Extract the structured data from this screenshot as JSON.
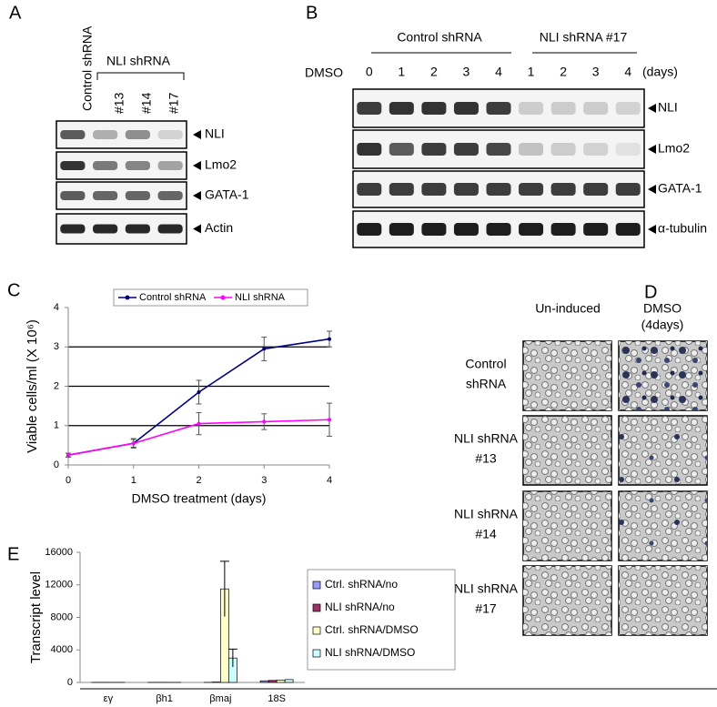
{
  "panel_labels": [
    "A",
    "B",
    "C",
    "D",
    "E"
  ],
  "panel_a": {
    "control_label": "Control shRNA",
    "group_label": "NLI shRNA",
    "lanes": [
      "#13",
      "#14",
      "#17"
    ],
    "bands": [
      "NLI",
      "Lmo2",
      "GATA-1",
      "Actin"
    ]
  },
  "panel_b": {
    "group_labels": [
      "Control shRNA",
      "NLI shRNA #17"
    ],
    "treatment": "DMSO",
    "lanes": [
      0,
      1,
      2,
      3,
      4,
      1,
      2,
      3,
      4
    ],
    "unit": "(days)",
    "bands": [
      "NLI",
      "Lmo2",
      "GATA-1",
      "α-tubulin"
    ]
  },
  "panel_d": {
    "columns": [
      [
        "Un-induced"
      ],
      [
        "DMSO",
        "(4days)"
      ]
    ],
    "rows": [
      [
        "Control",
        "shRNA"
      ],
      [
        "NLI shRNA",
        "#13"
      ],
      [
        "NLI shRNA",
        "#14"
      ],
      [
        "NLI shRNA",
        "#17"
      ]
    ]
  },
  "chart_data": [
    {
      "type": "line",
      "x": [
        0,
        1,
        2,
        3,
        4
      ],
      "xlim": [
        0,
        4
      ],
      "xticks": [
        0,
        1,
        2,
        3,
        4
      ],
      "ylim": [
        0,
        4
      ],
      "yticks": [
        0,
        1,
        2,
        3,
        4
      ],
      "grid": true,
      "legend": "top",
      "xlabel": "DMSO treatment (days)",
      "ylabel": "Viable cells/ml (X 10⁶)",
      "series": [
        {
          "name": "Control shRNA",
          "color": "#000080",
          "values": [
            0.25,
            0.55,
            1.85,
            2.95,
            3.2
          ],
          "errors": [
            0.05,
            0.12,
            0.3,
            0.3,
            0.2
          ]
        },
        {
          "name": "NLI shRNA",
          "color": "#ff00ff",
          "values": [
            0.25,
            0.55,
            1.05,
            1.1,
            1.15
          ],
          "errors": [
            0.05,
            0.1,
            0.28,
            0.2,
            0.42
          ]
        }
      ]
    },
    {
      "type": "bar",
      "categories": [
        "εγ",
        "βh1",
        "βmaj",
        "18S"
      ],
      "ylim": [
        0,
        16000
      ],
      "yticks": [
        0,
        4000,
        8000,
        12000,
        16000
      ],
      "ylabel": "Transcript level",
      "legend": "right",
      "series": [
        {
          "name": "Ctrl. shRNA/no",
          "color": "#9999ff",
          "values": [
            10,
            10,
            10,
            200
          ]
        },
        {
          "name": "NLI shRNA/no",
          "color": "#993366",
          "values": [
            10,
            10,
            50,
            250
          ]
        },
        {
          "name": "Ctrl. shRNA/DMSO",
          "color": "#ffffcc",
          "values": [
            10,
            10,
            11500,
            300
          ],
          "errors": [
            0,
            0,
            3400,
            0
          ]
        },
        {
          "name": "NLI shRNA/DMSO",
          "color": "#ccffff",
          "values": [
            10,
            10,
            3000,
            350
          ],
          "errors": [
            0,
            0,
            1100,
            0
          ]
        }
      ]
    }
  ]
}
